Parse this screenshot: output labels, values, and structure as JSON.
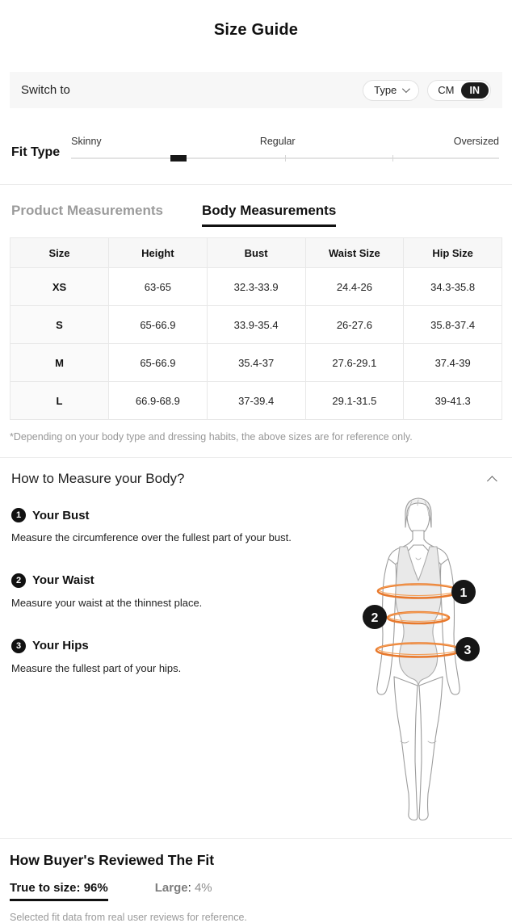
{
  "header": {
    "title": "Size Guide"
  },
  "switch_bar": {
    "label": "Switch to",
    "type_dropdown": {
      "label": "Type"
    },
    "unit_toggle": {
      "unselected": "CM",
      "selected": "IN"
    }
  },
  "fit_type": {
    "label": "Fit Type",
    "scale_labels": [
      "Skinny",
      "Regular",
      "Oversized"
    ],
    "indicator_percent": 25
  },
  "tabs": {
    "product": {
      "label": "Product Measurements",
      "active": false
    },
    "body": {
      "label": "Body Measurements",
      "active": true
    }
  },
  "size_table": {
    "columns": [
      "Size",
      "Height",
      "Bust",
      "Waist Size",
      "Hip Size"
    ],
    "rows": [
      {
        "size": "XS",
        "values": [
          "63-65",
          "32.3-33.9",
          "24.4-26",
          "34.3-35.8"
        ]
      },
      {
        "size": "S",
        "values": [
          "65-66.9",
          "33.9-35.4",
          "26-27.6",
          "35.8-37.4"
        ]
      },
      {
        "size": "M",
        "values": [
          "65-66.9",
          "35.4-37",
          "27.6-29.1",
          "37.4-39"
        ]
      },
      {
        "size": "L",
        "values": [
          "66.9-68.9",
          "37-39.4",
          "29.1-31.5",
          "39-41.3"
        ]
      }
    ]
  },
  "footnote": "*Depending on your body type and dressing habits, the above sizes are for reference only.",
  "measure_section": {
    "title": "How to Measure your Body?",
    "items": [
      {
        "num": "1",
        "title": "Your Bust",
        "desc": "Measure the circumference over the fullest part of your bust."
      },
      {
        "num": "2",
        "title": "Your Waist",
        "desc": "Measure your waist at the thinnest place."
      },
      {
        "num": "3",
        "title": "Your Hips",
        "desc": "Measure the fullest part of your hips."
      }
    ]
  },
  "review_section": {
    "title": "How Buyer's Reviewed The Fit",
    "stats": [
      {
        "label": "True to size",
        "value": "96%",
        "selected": true
      },
      {
        "label": "Large",
        "value": "4%",
        "selected": false
      }
    ],
    "note": "Selected fit data from real user reviews for reference."
  },
  "colors": {
    "accent_orange": "#E8782B",
    "badge_black": "#111111",
    "bar_gray": "#F7F7F7"
  }
}
